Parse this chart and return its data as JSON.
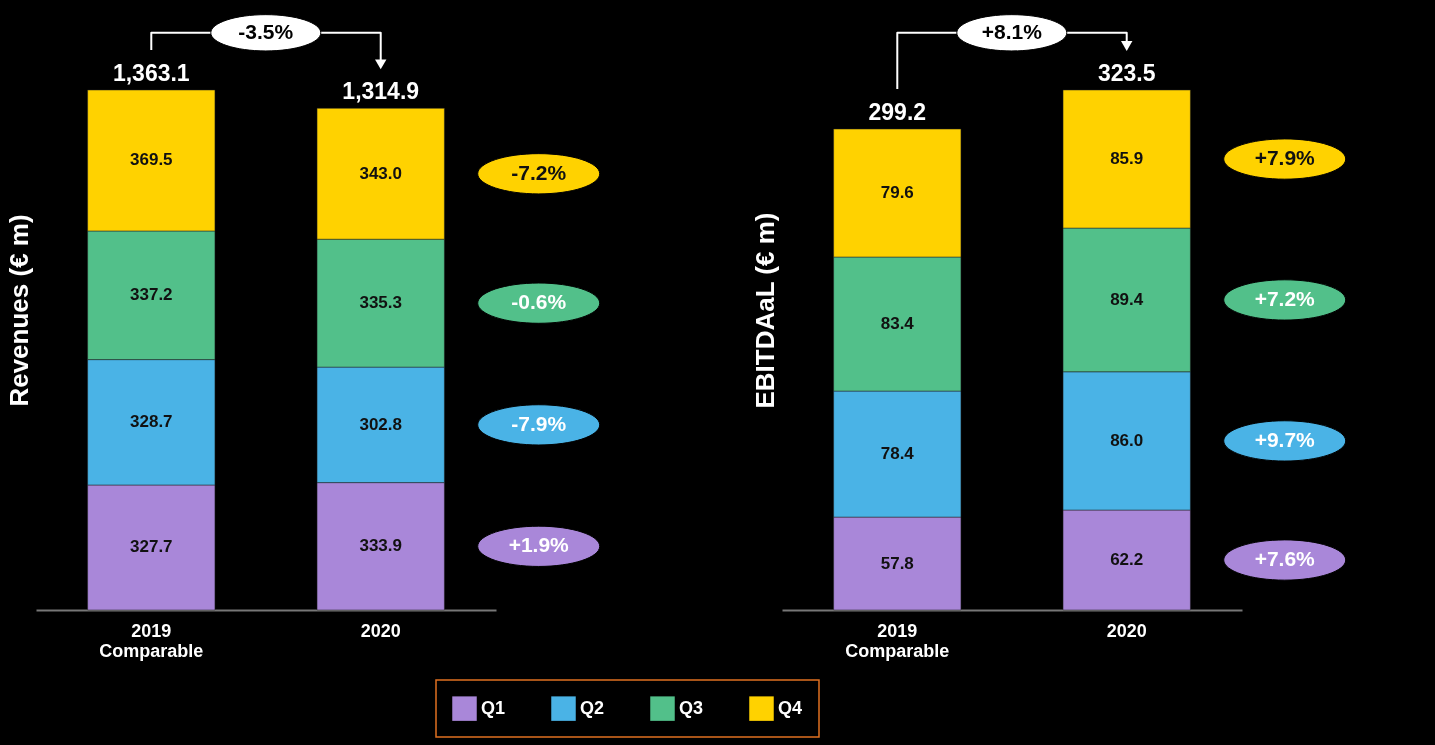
{
  "chart_data": [
    {
      "type": "bar",
      "stacked": true,
      "ylabel": "Revenues (€ m)",
      "categories": [
        "2019\nComparable",
        "2020"
      ],
      "series": [
        {
          "name": "Q1",
          "color": "#a987d9",
          "values": [
            327.7,
            333.9
          ],
          "value_labels": [
            "327.7",
            "333.9"
          ]
        },
        {
          "name": "Q2",
          "color": "#4ab3e6",
          "values": [
            328.7,
            302.8
          ],
          "value_labels": [
            "328.7",
            "302.8"
          ]
        },
        {
          "name": "Q3",
          "color": "#52c08a",
          "values": [
            337.2,
            335.3
          ],
          "value_labels": [
            "337.2",
            "335.3"
          ]
        },
        {
          "name": "Q4",
          "color": "#ffd200",
          "values": [
            369.5,
            343.0
          ],
          "value_labels": [
            "369.5",
            "343.0"
          ]
        }
      ],
      "totals": [
        "1,363.1",
        "1,314.9"
      ],
      "annotations": [
        "-3.5%",
        "+1.9%",
        "-7.9%",
        "-0.6%",
        "-7.2%"
      ],
      "legend": "bottom"
    },
    {
      "type": "bar",
      "stacked": true,
      "ylabel": "EBITDAaL (€ m)",
      "categories": [
        "2019\nComparable",
        "2020"
      ],
      "series": [
        {
          "name": "Q1",
          "color": "#a987d9",
          "values": [
            57.8,
            62.2
          ],
          "value_labels": [
            "57.8",
            "62.2"
          ]
        },
        {
          "name": "Q2",
          "color": "#4ab3e6",
          "values": [
            78.4,
            86.0
          ],
          "value_labels": [
            "78.4",
            "86.0"
          ]
        },
        {
          "name": "Q3",
          "color": "#52c08a",
          "values": [
            83.4,
            89.4
          ],
          "value_labels": [
            "83.4",
            "89.4"
          ]
        },
        {
          "name": "Q4",
          "color": "#ffd200",
          "values": [
            79.6,
            85.9
          ],
          "value_labels": [
            "79.6",
            "85.9"
          ]
        }
      ],
      "totals": [
        "299.2",
        "323.5"
      ],
      "annotations": [
        "+8.1%",
        "+7.6%",
        "+9.7%",
        "+7.2%",
        "+7.9%"
      ],
      "legend": "bottom"
    }
  ]
}
